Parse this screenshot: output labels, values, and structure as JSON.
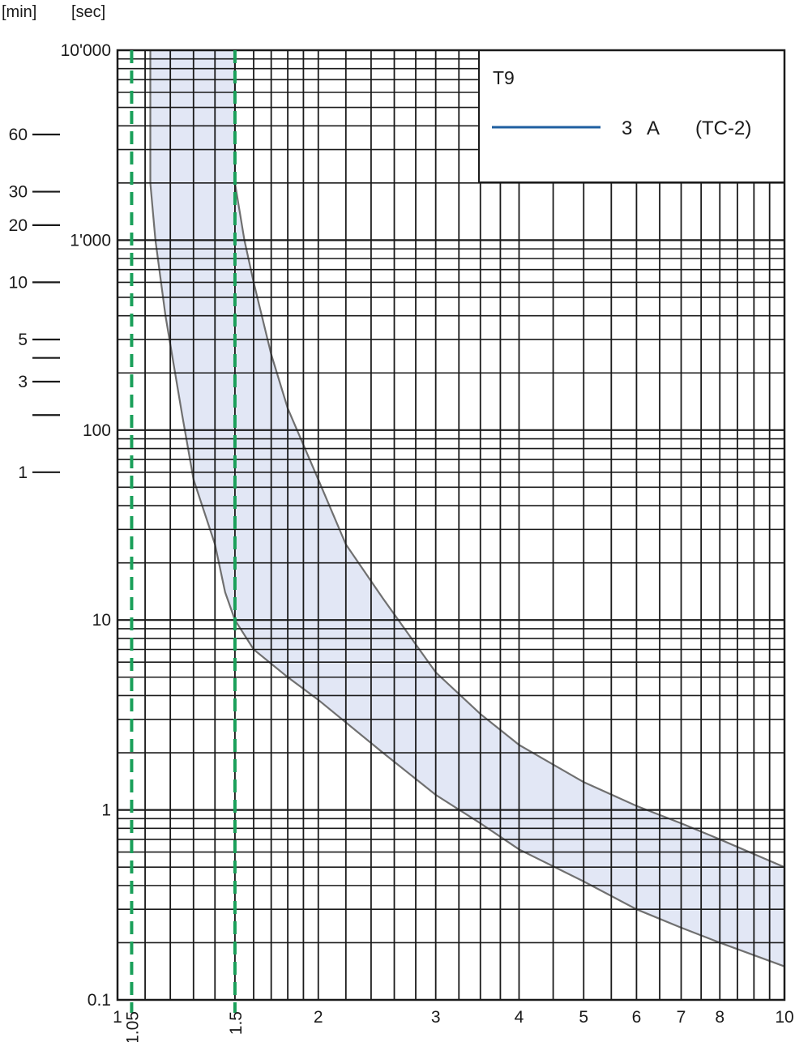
{
  "chart_data": {
    "type": "line",
    "title": "",
    "xlabel": "",
    "ylabel": "",
    "x_scale": "log",
    "y_scale": "log",
    "xlim": [
      1,
      10
    ],
    "ylim": [
      0.1,
      10000
    ],
    "y_units": {
      "min_label": "[min]",
      "sec_label": "[sec]"
    },
    "x_ticks": [
      {
        "value": 1,
        "label": "1"
      },
      {
        "value": 2,
        "label": "2"
      },
      {
        "value": 3,
        "label": "3"
      },
      {
        "value": 4,
        "label": "4"
      },
      {
        "value": 5,
        "label": "5"
      },
      {
        "value": 6,
        "label": "6"
      },
      {
        "value": 7,
        "label": "7"
      },
      {
        "value": 8,
        "label": "8"
      },
      {
        "value": 10,
        "label": "10"
      }
    ],
    "x_ticks_rotated": [
      {
        "value": 1.05,
        "label": "1.05"
      },
      {
        "value": 1.5,
        "label": "1.5"
      }
    ],
    "y_ticks_sec": [
      {
        "value": 10000,
        "label": "10'000"
      },
      {
        "value": 1000,
        "label": "1'000"
      },
      {
        "value": 100,
        "label": "100"
      },
      {
        "value": 10,
        "label": "10"
      },
      {
        "value": 1,
        "label": "1"
      },
      {
        "value": 0.1,
        "label": "0.1"
      }
    ],
    "y_ticks_min": [
      {
        "seconds": 3600,
        "label": "60"
      },
      {
        "seconds": 1800,
        "label": "30"
      },
      {
        "seconds": 1200,
        "label": "20"
      },
      {
        "seconds": 600,
        "label": "10"
      },
      {
        "seconds": 300,
        "label": "5"
      },
      {
        "seconds": 240,
        "label": ""
      },
      {
        "seconds": 180,
        "label": "3"
      },
      {
        "seconds": 120,
        "label": ""
      },
      {
        "seconds": 60,
        "label": "1"
      }
    ],
    "legend": {
      "placement": "top-right",
      "title": "T9",
      "entries": [
        {
          "rating": "3",
          "unit": "A",
          "curve": "(TC-2)",
          "color": "#1f5fa0"
        }
      ]
    },
    "reference_lines": [
      {
        "x": 1.05,
        "color": "#1aa05a",
        "style": "dashed"
      },
      {
        "x": 1.5,
        "color": "#1aa05a",
        "style": "dashed"
      }
    ],
    "band": {
      "fill": "#e2e7f5",
      "stroke": "#707070",
      "lower_curve": [
        [
          1.12,
          2000
        ],
        [
          1.14,
          1000
        ],
        [
          1.18,
          400
        ],
        [
          1.25,
          120
        ],
        [
          1.3,
          55
        ],
        [
          1.4,
          25
        ],
        [
          1.45,
          14
        ],
        [
          1.5,
          10
        ],
        [
          1.6,
          7
        ],
        [
          1.8,
          5
        ],
        [
          2,
          3.8
        ],
        [
          2.5,
          2
        ],
        [
          3,
          1.2
        ],
        [
          3.5,
          0.85
        ],
        [
          4,
          0.62
        ],
        [
          5,
          0.42
        ],
        [
          6,
          0.3
        ],
        [
          7,
          0.24
        ],
        [
          8,
          0.2
        ],
        [
          10,
          0.15
        ]
      ],
      "upper_curve": [
        [
          1.5,
          10000
        ],
        [
          1.5,
          2000
        ],
        [
          1.55,
          1000
        ],
        [
          1.6,
          600
        ],
        [
          1.7,
          250
        ],
        [
          1.8,
          130
        ],
        [
          2,
          55
        ],
        [
          2.2,
          25
        ],
        [
          2.5,
          13
        ],
        [
          3,
          5.3
        ],
        [
          3.5,
          3.2
        ],
        [
          4,
          2.2
        ],
        [
          5,
          1.4
        ],
        [
          6,
          1.05
        ],
        [
          7,
          0.85
        ],
        [
          8,
          0.7
        ],
        [
          10,
          0.5
        ]
      ]
    }
  }
}
